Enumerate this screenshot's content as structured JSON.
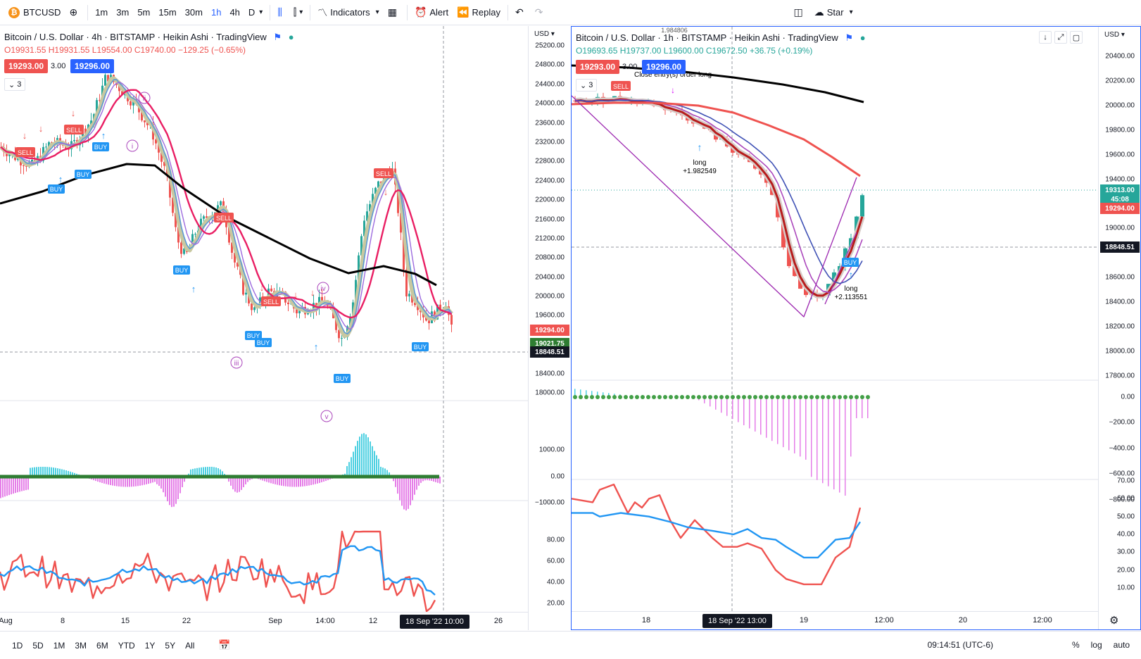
{
  "toolbar": {
    "symbol": "BTCUSD",
    "intervals": [
      "1m",
      "3m",
      "5m",
      "15m",
      "30m",
      "1h",
      "4h",
      "D"
    ],
    "active_interval": "1h",
    "indicators_label": "Indicators",
    "alert_label": "Alert",
    "replay_label": "Replay",
    "star_label": "Star"
  },
  "left": {
    "title": "Bitcoin / U.S. Dollar · 4h · BITSTAMP · Heikin Ashi · TradingView",
    "o": "O19931.55",
    "h": "H19931.55",
    "l": "L19554.00",
    "c": "C19740.00",
    "chg": "−129.25 (−0.65%)",
    "sell_price": "19293.00",
    "qty": "3.00",
    "buy_price": "19296.00",
    "collapse": "3",
    "unit": "USD",
    "price_ticks": [
      "25200.00",
      "24800.00",
      "24400.00",
      "24000.00",
      "23600.00",
      "23200.00",
      "22800.00",
      "22400.00",
      "22000.00",
      "21600.00",
      "21200.00",
      "20800.00",
      "20400.00",
      "20000.00",
      "19600.00",
      "18400.00",
      "18000.00"
    ],
    "macd_ticks": [
      "1000.00",
      "0.00",
      "−1000.00"
    ],
    "rsi_ticks": [
      "80.00",
      "60.00",
      "40.00",
      "20.00"
    ],
    "label_red": "19294.00",
    "label_green": "19021.75",
    "label_dark": "18848.51",
    "time_ticks": [
      "Aug",
      "8",
      "15",
      "22",
      "Sep",
      "14:00",
      "12",
      "26"
    ],
    "cursor_date": "18 Sep '22",
    "cursor_time": "10:00",
    "wave_labels": [
      "ii",
      "i",
      "iii",
      "iv",
      "v"
    ],
    "sell_tag": "SELL",
    "buy_tag": "BUY"
  },
  "right": {
    "title": "Bitcoin / U.S. Dollar · 1h · BITSTAMP · Heikin Ashi · TradingView",
    "o": "O19693.65",
    "h": "H19737.00",
    "l": "L19600.00",
    "c": "C19672.50",
    "chg": "+36.75 (+0.19%)",
    "sell_price": "19293.00",
    "qty": "3.00",
    "buy_price": "19296.00",
    "collapse": "3",
    "unit": "USD",
    "price_ticks": [
      "20400.00",
      "20200.00",
      "20000.00",
      "19800.00",
      "19600.00",
      "19400.00",
      "19000.00",
      "18600.00",
      "18400.00",
      "18200.00",
      "18000.00",
      "17800.00"
    ],
    "macd_ticks": [
      "0.00",
      "−200.00",
      "−400.00",
      "−600.00",
      "−800.00"
    ],
    "rsi_ticks": [
      "70.00",
      "60.00",
      "50.00",
      "40.00",
      "30.00",
      "20.00",
      "10.00"
    ],
    "label_last": "19313.00",
    "label_countdown": "45:08",
    "label_red": "19294.00",
    "label_dark": "18848.51",
    "time_ticks": [
      "18",
      "19",
      "12:00",
      "20",
      "12:00"
    ],
    "cursor_date": "18 Sep '22",
    "cursor_time": "13:00",
    "annotations": {
      "close_top": "1.984806",
      "close_entry": "Close entry(s) order long",
      "long1": "long",
      "long1_val": "+1.982549",
      "long2": "long",
      "long2_val": "+2.113551",
      "sell_tag": "SELL",
      "buy_tag": "BUY"
    }
  },
  "bottom": {
    "ranges": [
      "1D",
      "5D",
      "1M",
      "3M",
      "6M",
      "YTD",
      "1Y",
      "5Y",
      "All"
    ],
    "clock": "09:14:51 (UTC-6)",
    "percent": "%",
    "log": "log",
    "auto": "auto"
  },
  "colors": {
    "accent": "#2962ff",
    "up": "#26a69a",
    "down": "#ef5350",
    "ema_pink": "#e91e63",
    "ma_black": "#000000",
    "sell": "#ef5350",
    "buy": "#2196f3"
  }
}
